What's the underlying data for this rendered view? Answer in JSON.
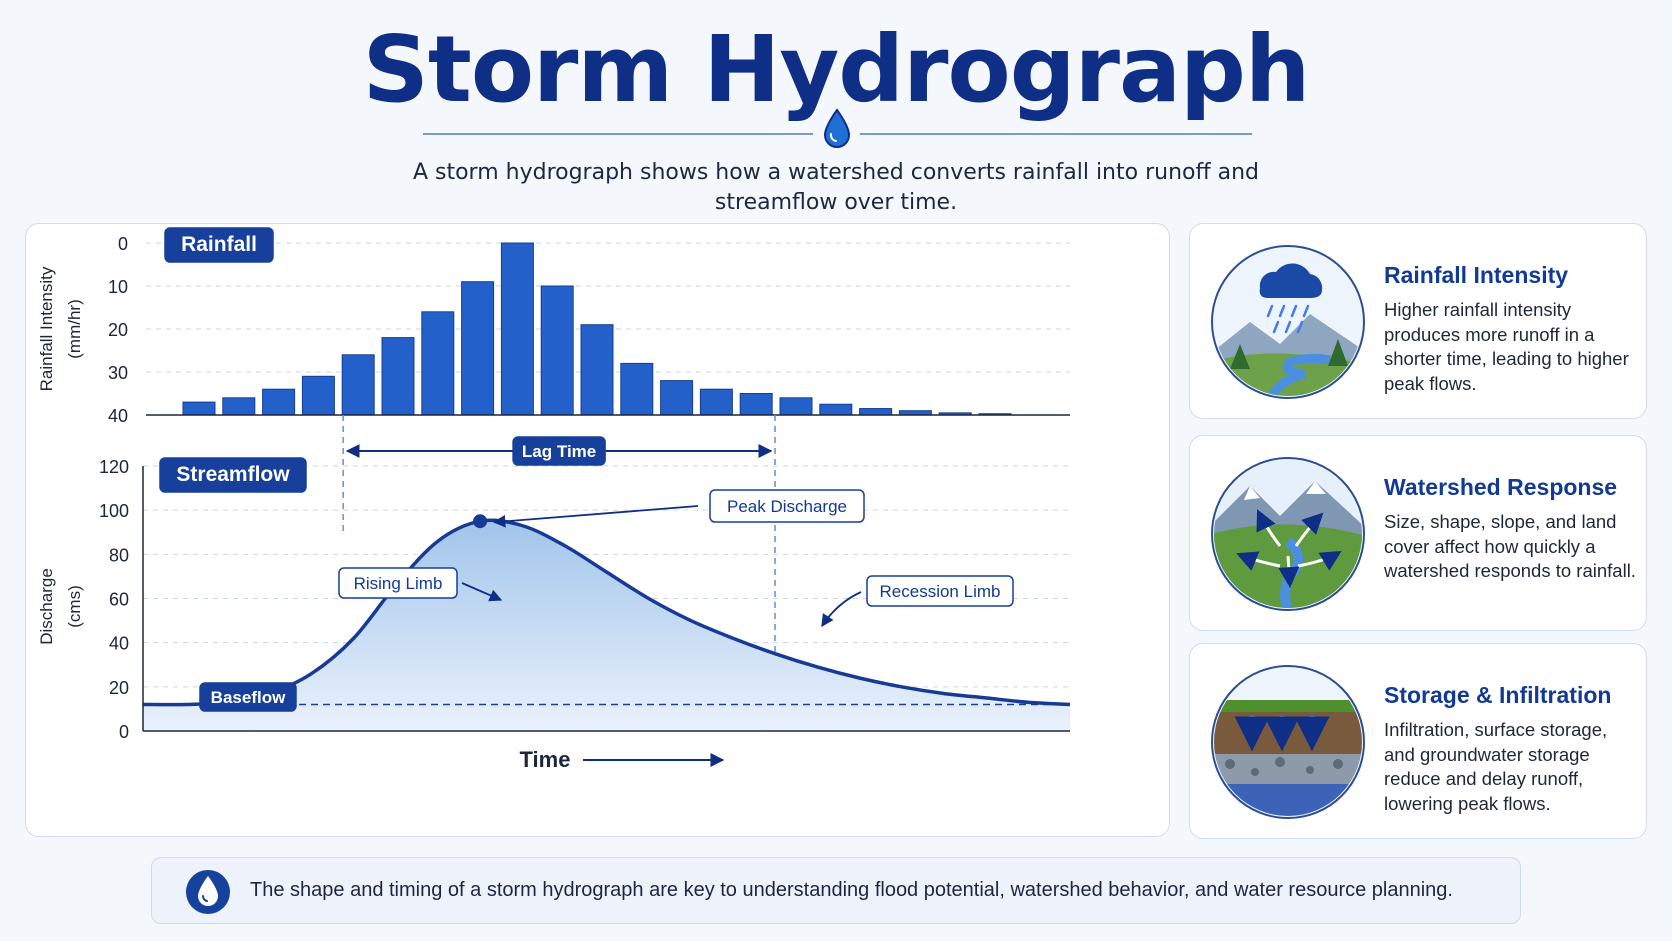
{
  "header": {
    "title": "Storm Hydrograph",
    "subtitle": "A storm hydrograph shows how a watershed converts rainfall into runoff and streamflow over time."
  },
  "colors": {
    "primary": "#1459c4",
    "dark": "#0f2f86",
    "accent": "#123a95"
  },
  "chart_data": [
    {
      "type": "bar",
      "title": "Rainfall",
      "ylabel": "Rainfall Intensity (mm/hr)",
      "ylim": [
        0,
        40
      ],
      "y_inverted": true,
      "yticks": [
        "0",
        "10",
        "20",
        "30",
        "40"
      ],
      "values": [
        3,
        4,
        6,
        9,
        14,
        18,
        24,
        31,
        40,
        30,
        21,
        12,
        8,
        6,
        5,
        4,
        2.5,
        1.5,
        1,
        0.5,
        0.3
      ],
      "grid": true
    },
    {
      "type": "area",
      "title": "Streamflow",
      "ylabel": "Discharge (cms)",
      "xlabel": "Time",
      "ylim": [
        0,
        120
      ],
      "yticks": [
        "0",
        "20",
        "40",
        "60",
        "80",
        "100",
        "120"
      ],
      "x": [
        0,
        2,
        4,
        6,
        8,
        10,
        12,
        14,
        16,
        18,
        20,
        22,
        24,
        26,
        28,
        30,
        32,
        34,
        36,
        38,
        40,
        42,
        44
      ],
      "y": [
        12,
        12,
        13,
        17,
        26,
        42,
        66,
        86,
        95,
        93,
        84,
        72,
        60,
        50,
        42,
        35,
        29,
        24,
        20,
        17,
        15,
        13,
        12
      ],
      "baseflow": 12,
      "peak": {
        "x": 16,
        "y": 95
      },
      "lag_time": {
        "from_x": 9.5,
        "to_x": 30
      },
      "annotations": [
        "Rising Limb",
        "Peak Discharge",
        "Recession Limb",
        "Baseflow",
        "Lag Time"
      ],
      "grid": true
    }
  ],
  "cards": [
    {
      "title": "Rainfall Intensity",
      "text": "Higher rainfall intensity produces more runoff in a shorter time, leading to higher peak flows.",
      "icon": "rain-cloud-landscape-icon"
    },
    {
      "title": "Watershed Response",
      "text": "Size, shape, slope, and land cover affect how quickly a watershed responds to rainfall.",
      "icon": "watershed-mountains-icon"
    },
    {
      "title": "Storage & Infiltration",
      "text": "Infiltration, surface storage, and groundwater storage reduce and delay runoff, lowering peak flows.",
      "icon": "soil-infiltration-icon"
    }
  ],
  "footer": {
    "text": "The shape and timing of a storm hydrograph are key to understanding flood potential, watershed behavior, and water resource planning.",
    "icon": "water-drop-icon"
  }
}
